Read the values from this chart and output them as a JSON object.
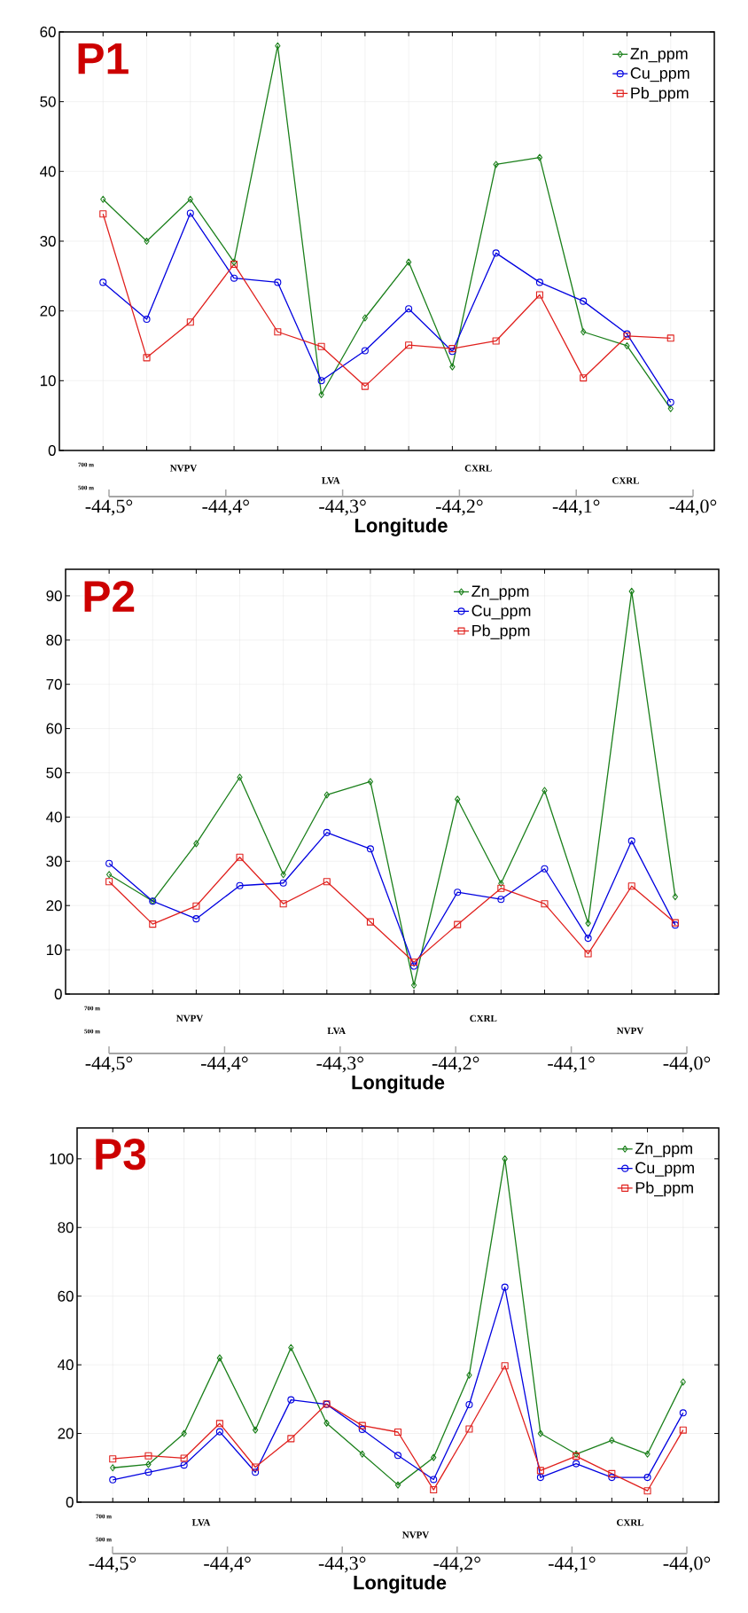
{
  "chart_data": [
    {
      "type": "line",
      "title": "P1",
      "xlabel": "Longitude",
      "grid": true,
      "legend": "top right",
      "categories": [
        null,
        null,
        null,
        null,
        null,
        null,
        null,
        null,
        null,
        null,
        null,
        null,
        null,
        null
      ],
      "ylim": [
        0,
        60
      ],
      "yticks": [
        0,
        10,
        20,
        30,
        40,
        50,
        60
      ],
      "x2lim": [
        -44.5,
        -44.0
      ],
      "x2ticks": [
        {
          "value": -44.5,
          "label": "-44,5°"
        },
        {
          "value": -44.4,
          "label": "-44,4°"
        },
        {
          "value": -44.3,
          "label": "-44,3°"
        },
        {
          "value": -44.2,
          "label": "-44,2°"
        },
        {
          "value": -44.1,
          "label": "-44,1°"
        },
        {
          "value": -44.0,
          "label": "-44,0°"
        }
      ],
      "annotations": [
        "700 m",
        "500 m",
        "NVPV",
        "LVA",
        "CXRL",
        "CXRL"
      ],
      "series": [
        {
          "name": "Zn_ppm",
          "color": "#1a7f1a",
          "marker": "diamond",
          "values": [
            36,
            30,
            36,
            27,
            58,
            8,
            19,
            27,
            12,
            41,
            42,
            17,
            15,
            6
          ]
        },
        {
          "name": "Cu_ppm",
          "color": "#0000e0",
          "marker": "circle",
          "values": [
            24.1,
            18.8,
            34,
            24.7,
            24.1,
            10,
            14.3,
            20.3,
            14.2,
            28.3,
            24.1,
            21.4,
            16.7,
            6.9
          ]
        },
        {
          "name": "Pb_ppm",
          "color": "#e0201d",
          "marker": "square",
          "values": [
            33.9,
            13.3,
            18.4,
            26.7,
            17,
            14.9,
            9.2,
            15.1,
            14.6,
            15.7,
            22.3,
            10.4,
            16.4,
            16.1
          ]
        }
      ]
    },
    {
      "type": "line",
      "title": "P2",
      "xlabel": "Longitude",
      "grid": true,
      "legend": "top",
      "categories": [
        null,
        null,
        null,
        null,
        null,
        null,
        null,
        null,
        null,
        null,
        null,
        null,
        null,
        null
      ],
      "ylim": [
        0,
        96
      ],
      "yticks": [
        0,
        10,
        20,
        30,
        40,
        50,
        60,
        70,
        80,
        90
      ],
      "x2lim": [
        -44.5,
        -44.0
      ],
      "x2ticks": [
        {
          "value": -44.5,
          "label": "-44,5°"
        },
        {
          "value": -44.4,
          "label": "-44,4°"
        },
        {
          "value": -44.3,
          "label": "-44,3°"
        },
        {
          "value": -44.2,
          "label": "-44,2°"
        },
        {
          "value": -44.1,
          "label": "-44,1°"
        },
        {
          "value": -44.0,
          "label": "-44,0°"
        }
      ],
      "annotations": [
        "700 m",
        "500 m",
        "NVPV",
        "LVA",
        "CXRL",
        "NVPV"
      ],
      "series": [
        {
          "name": "Zn_ppm",
          "color": "#1a7f1a",
          "marker": "diamond",
          "values": [
            27,
            21,
            34,
            49,
            27,
            45,
            48,
            2,
            44,
            25,
            46,
            16,
            91,
            22
          ]
        },
        {
          "name": "Cu_ppm",
          "color": "#0000e0",
          "marker": "circle",
          "values": [
            29.5,
            21,
            17,
            24.5,
            25.1,
            36.5,
            32.8,
            6.3,
            23,
            21.4,
            28.3,
            12.6,
            34.6,
            15.6
          ]
        },
        {
          "name": "Pb_ppm",
          "color": "#e0201d",
          "marker": "square",
          "values": [
            25.4,
            15.8,
            19.9,
            30.9,
            20.4,
            25.4,
            16.3,
            7.2,
            15.7,
            23.9,
            20.4,
            9.1,
            24.4,
            16.1
          ]
        }
      ]
    },
    {
      "type": "line",
      "title": "P3",
      "xlabel": "Longitude",
      "grid": true,
      "legend": "top right",
      "categories": [
        null,
        null,
        null,
        null,
        null,
        null,
        null,
        null,
        null,
        null,
        null,
        null,
        null,
        null,
        null,
        null,
        null
      ],
      "ylim": [
        0,
        109
      ],
      "yticks": [
        0,
        20,
        40,
        60,
        80,
        100
      ],
      "x2lim": [
        -44.5,
        -44.0
      ],
      "x2ticks": [
        {
          "value": -44.5,
          "label": "-44,5°"
        },
        {
          "value": -44.4,
          "label": "-44,4°"
        },
        {
          "value": -44.3,
          "label": "-44,3°"
        },
        {
          "value": -44.2,
          "label": "-44,2°"
        },
        {
          "value": -44.1,
          "label": "-44,1°"
        },
        {
          "value": -44.0,
          "label": "-44,0°"
        }
      ],
      "annotations": [
        "700 m",
        "500 m",
        "LVA",
        "NVPV",
        "CXRL"
      ],
      "series": [
        {
          "name": "Zn_ppm",
          "color": "#1a7f1a",
          "marker": "diamond",
          "values": [
            10,
            11,
            20,
            42,
            21,
            45,
            23,
            14,
            5,
            13,
            37,
            100,
            20,
            14,
            18,
            14,
            35
          ]
        },
        {
          "name": "Cu_ppm",
          "color": "#0000e0",
          "marker": "circle",
          "values": [
            6.5,
            8.7,
            10.8,
            20.5,
            8.7,
            29.8,
            28.5,
            21.2,
            13.6,
            6.6,
            28.4,
            62.6,
            7.2,
            11.2,
            7.2,
            7.2,
            26
          ]
        },
        {
          "name": "Pb_ppm",
          "color": "#e0201d",
          "marker": "square",
          "values": [
            12.6,
            13.5,
            12.8,
            22.9,
            10.2,
            18.5,
            28.6,
            22.3,
            20.4,
            3.6,
            21.3,
            39.7,
            9.2,
            13.4,
            8.3,
            3.3,
            21
          ]
        }
      ]
    }
  ]
}
